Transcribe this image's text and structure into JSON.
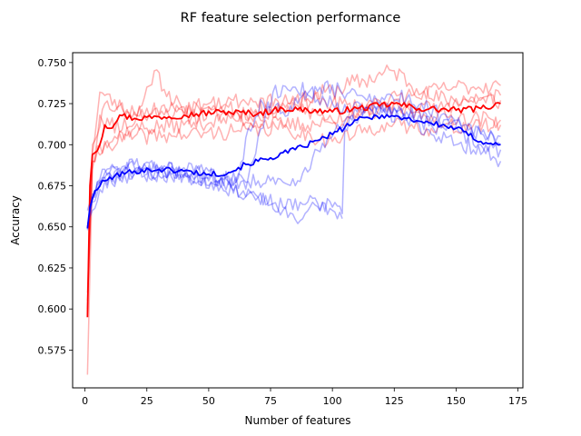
{
  "chart_data": {
    "type": "line",
    "title": "RF feature selection performance",
    "xlabel": "Number of features",
    "ylabel": "Accuracy",
    "xlim": [
      -5,
      177
    ],
    "ylim": [
      0.552,
      0.756
    ],
    "x_ticks": [
      0,
      25,
      50,
      75,
      100,
      125,
      150,
      175
    ],
    "y_ticks": [
      0.575,
      0.6,
      0.625,
      0.65,
      0.675,
      0.7,
      0.725,
      0.75
    ],
    "x_tick_labels": [
      "0",
      "25",
      "50",
      "75",
      "100",
      "125",
      "150",
      "175"
    ],
    "y_tick_labels": [
      "0.575",
      "0.600",
      "0.625",
      "0.650",
      "0.675",
      "0.700",
      "0.725",
      "0.750"
    ],
    "grid": false,
    "legend": "none",
    "x_max": 168,
    "series": [
      {
        "color": "#ff0000",
        "opacity": 0.3,
        "linewidth": 1.5,
        "seed": 11,
        "anchors": [
          [
            1,
            0.56
          ],
          [
            3,
            0.685
          ],
          [
            6,
            0.718
          ],
          [
            10,
            0.712
          ],
          [
            20,
            0.713
          ],
          [
            28,
            0.745
          ],
          [
            40,
            0.718
          ],
          [
            60,
            0.719
          ],
          [
            80,
            0.722
          ],
          [
            100,
            0.733
          ],
          [
            125,
            0.745
          ],
          [
            140,
            0.728
          ],
          [
            168,
            0.727
          ]
        ],
        "noise": 0.006
      },
      {
        "color": "#ff0000",
        "opacity": 0.3,
        "linewidth": 1.5,
        "seed": 23,
        "anchors": [
          [
            1,
            0.598
          ],
          [
            3,
            0.695
          ],
          [
            6,
            0.732
          ],
          [
            15,
            0.722
          ],
          [
            30,
            0.718
          ],
          [
            50,
            0.725
          ],
          [
            70,
            0.718
          ],
          [
            90,
            0.728
          ],
          [
            110,
            0.723
          ],
          [
            130,
            0.73
          ],
          [
            150,
            0.735
          ],
          [
            168,
            0.736
          ]
        ],
        "noise": 0.005
      },
      {
        "color": "#ff0000",
        "opacity": 0.3,
        "linewidth": 1.5,
        "seed": 37,
        "anchors": [
          [
            1,
            0.605
          ],
          [
            3,
            0.69
          ],
          [
            8,
            0.702
          ],
          [
            20,
            0.71
          ],
          [
            40,
            0.712
          ],
          [
            60,
            0.716
          ],
          [
            80,
            0.712
          ],
          [
            100,
            0.713
          ],
          [
            120,
            0.722
          ],
          [
            140,
            0.718
          ],
          [
            168,
            0.715
          ]
        ],
        "noise": 0.005
      },
      {
        "color": "#ff0000",
        "opacity": 0.3,
        "linewidth": 1.5,
        "seed": 41,
        "anchors": [
          [
            1,
            0.61
          ],
          [
            3,
            0.69
          ],
          [
            8,
            0.7
          ],
          [
            20,
            0.705
          ],
          [
            40,
            0.706
          ],
          [
            60,
            0.708
          ],
          [
            80,
            0.71
          ],
          [
            100,
            0.702
          ],
          [
            120,
            0.712
          ],
          [
            140,
            0.71
          ],
          [
            168,
            0.712
          ]
        ],
        "noise": 0.005
      },
      {
        "color": "#ff0000",
        "opacity": 0.3,
        "linewidth": 1.5,
        "seed": 53,
        "anchors": [
          [
            1,
            0.6
          ],
          [
            3,
            0.7
          ],
          [
            8,
            0.725
          ],
          [
            20,
            0.72
          ],
          [
            40,
            0.723
          ],
          [
            60,
            0.727
          ],
          [
            80,
            0.726
          ],
          [
            100,
            0.715
          ],
          [
            120,
            0.725
          ],
          [
            140,
            0.722
          ],
          [
            168,
            0.73
          ]
        ],
        "noise": 0.005
      },
      {
        "color": "#0000ff",
        "opacity": 0.3,
        "linewidth": 1.5,
        "seed": 61,
        "anchors": [
          [
            1,
            0.65
          ],
          [
            3,
            0.668
          ],
          [
            8,
            0.685
          ],
          [
            20,
            0.688
          ],
          [
            40,
            0.686
          ],
          [
            50,
            0.684
          ],
          [
            60,
            0.672
          ],
          [
            70,
            0.668
          ],
          [
            80,
            0.66
          ],
          [
            86,
            0.652
          ],
          [
            92,
            0.665
          ],
          [
            100,
            0.66
          ],
          [
            104,
            0.655
          ]
        ],
        "noise": 0.004
      },
      {
        "color": "#0000ff",
        "opacity": 0.3,
        "linewidth": 1.5,
        "seed": 67,
        "anchors": [
          [
            1,
            0.652
          ],
          [
            3,
            0.66
          ],
          [
            8,
            0.678
          ],
          [
            20,
            0.682
          ],
          [
            40,
            0.682
          ],
          [
            55,
            0.675
          ],
          [
            70,
            0.668
          ],
          [
            80,
            0.662
          ],
          [
            90,
            0.665
          ],
          [
            100,
            0.662
          ],
          [
            104,
            0.658
          ],
          [
            105,
            0.71
          ],
          [
            115,
            0.722
          ],
          [
            130,
            0.715
          ],
          [
            150,
            0.7
          ],
          [
            168,
            0.697
          ]
        ],
        "noise": 0.005
      },
      {
        "color": "#0000ff",
        "opacity": 0.3,
        "linewidth": 1.5,
        "seed": 71,
        "anchors": [
          [
            1,
            0.66
          ],
          [
            3,
            0.67
          ],
          [
            8,
            0.683
          ],
          [
            20,
            0.685
          ],
          [
            40,
            0.684
          ],
          [
            55,
            0.68
          ],
          [
            65,
            0.673
          ],
          [
            70,
            0.705
          ],
          [
            76,
            0.732
          ],
          [
            85,
            0.735
          ],
          [
            100,
            0.725
          ],
          [
            115,
            0.722
          ],
          [
            130,
            0.72
          ],
          [
            150,
            0.712
          ],
          [
            168,
            0.705
          ]
        ],
        "noise": 0.005
      },
      {
        "color": "#0000ff",
        "opacity": 0.3,
        "linewidth": 1.5,
        "seed": 79,
        "anchors": [
          [
            1,
            0.648
          ],
          [
            3,
            0.665
          ],
          [
            8,
            0.68
          ],
          [
            20,
            0.684
          ],
          [
            40,
            0.682
          ],
          [
            50,
            0.678
          ],
          [
            62,
            0.68
          ],
          [
            66,
            0.71
          ],
          [
            72,
            0.725
          ],
          [
            80,
            0.72
          ],
          [
            95,
            0.735
          ],
          [
            110,
            0.73
          ],
          [
            130,
            0.728
          ],
          [
            150,
            0.715
          ],
          [
            168,
            0.7
          ]
        ],
        "noise": 0.005
      },
      {
        "color": "#0000ff",
        "opacity": 0.3,
        "linewidth": 1.5,
        "seed": 83,
        "anchors": [
          [
            1,
            0.65
          ],
          [
            3,
            0.668
          ],
          [
            8,
            0.68
          ],
          [
            20,
            0.686
          ],
          [
            40,
            0.68
          ],
          [
            55,
            0.68
          ],
          [
            70,
            0.678
          ],
          [
            85,
            0.675
          ],
          [
            92,
            0.692
          ],
          [
            100,
            0.705
          ],
          [
            110,
            0.72
          ],
          [
            125,
            0.722
          ],
          [
            140,
            0.712
          ],
          [
            155,
            0.705
          ],
          [
            168,
            0.69
          ]
        ],
        "noise": 0.005
      },
      {
        "name_hidden": "",
        "color": "#ff0000",
        "opacity": 1,
        "linewidth": 1.8,
        "seed": 97,
        "anchors": [
          [
            1,
            0.595
          ],
          [
            2,
            0.675
          ],
          [
            3,
            0.694
          ],
          [
            6,
            0.7
          ],
          [
            8,
            0.712
          ],
          [
            10,
            0.71
          ],
          [
            14,
            0.718
          ],
          [
            20,
            0.716
          ],
          [
            30,
            0.717
          ],
          [
            40,
            0.718
          ],
          [
            55,
            0.72
          ],
          [
            70,
            0.719
          ],
          [
            80,
            0.722
          ],
          [
            90,
            0.721
          ],
          [
            100,
            0.72
          ],
          [
            110,
            0.722
          ],
          [
            125,
            0.725
          ],
          [
            135,
            0.722
          ],
          [
            150,
            0.721
          ],
          [
            160,
            0.722
          ],
          [
            168,
            0.725
          ]
        ],
        "noise": 0.002
      },
      {
        "color": "#0000ff",
        "opacity": 1,
        "linewidth": 1.8,
        "seed": 101,
        "anchors": [
          [
            1,
            0.649
          ],
          [
            2,
            0.662
          ],
          [
            4,
            0.672
          ],
          [
            8,
            0.678
          ],
          [
            12,
            0.681
          ],
          [
            20,
            0.684
          ],
          [
            30,
            0.685
          ],
          [
            40,
            0.684
          ],
          [
            50,
            0.682
          ],
          [
            58,
            0.683
          ],
          [
            65,
            0.688
          ],
          [
            75,
            0.692
          ],
          [
            85,
            0.697
          ],
          [
            95,
            0.703
          ],
          [
            102,
            0.708
          ],
          [
            110,
            0.715
          ],
          [
            120,
            0.718
          ],
          [
            130,
            0.716
          ],
          [
            140,
            0.713
          ],
          [
            150,
            0.71
          ],
          [
            160,
            0.702
          ],
          [
            168,
            0.7
          ]
        ],
        "noise": 0.0018
      }
    ]
  }
}
